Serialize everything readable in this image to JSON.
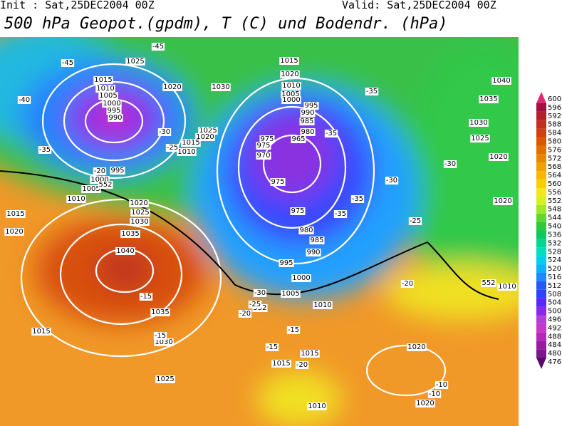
{
  "header": {
    "init": "Init : Sat,25DEC2004 00Z",
    "valid": "Valid: Sat,25DEC2004 00Z",
    "title": "500 hPa Geopot.(gpdm), T (C) und Bodendr. (hPa)"
  },
  "colorbar": {
    "levels": [
      476,
      480,
      484,
      488,
      492,
      496,
      500,
      504,
      508,
      512,
      516,
      520,
      524,
      528,
      532,
      536,
      540,
      544,
      548,
      552,
      556,
      560,
      564,
      568,
      572,
      576,
      580,
      584,
      588,
      592,
      596,
      600
    ],
    "colors": [
      "#5a0a6e",
      "#7a1a8c",
      "#9a1aa0",
      "#b828b8",
      "#c838c8",
      "#b040d8",
      "#8a28e8",
      "#5a28f8",
      "#3040ff",
      "#2858f0",
      "#1e88ff",
      "#10b0ff",
      "#00d0e8",
      "#00e0c0",
      "#00d890",
      "#10c860",
      "#30c840",
      "#60d830",
      "#a0e828",
      "#d8f020",
      "#f0e818",
      "#f8d000",
      "#f8b800",
      "#f0a000",
      "#e88800",
      "#e07000",
      "#d85800",
      "#d04010",
      "#c03020",
      "#b02030",
      "#a01040",
      "#e02870"
    ]
  },
  "map": {
    "labels": [
      1015,
      1010,
      1005,
      1000,
      995,
      990,
      1025,
      1020,
      1030,
      1025,
      1020,
      1015,
      1010,
      -45,
      -45,
      -40,
      -35,
      -30,
      -25,
      -20,
      995,
      1000,
      1005,
      1010,
      1015,
      1020,
      1025,
      1030,
      1035,
      1040,
      1035,
      1030,
      1025,
      1015,
      1015,
      1020,
      1010,
      1005,
      1000,
      995,
      990,
      985,
      980,
      975,
      975,
      970,
      965,
      975,
      975,
      980,
      985,
      990,
      995,
      1000,
      1005,
      1010,
      1015,
      1020,
      1015,
      1010,
      1040,
      1035,
      1030,
      1025,
      1020,
      1020,
      1010,
      1020,
      1020,
      552,
      552,
      552,
      -35,
      -35,
      -30,
      -25,
      -20,
      -15,
      -15,
      -15,
      -10,
      -30,
      -35,
      -35,
      -30,
      -25,
      -20,
      -15,
      -20,
      -10
    ]
  }
}
